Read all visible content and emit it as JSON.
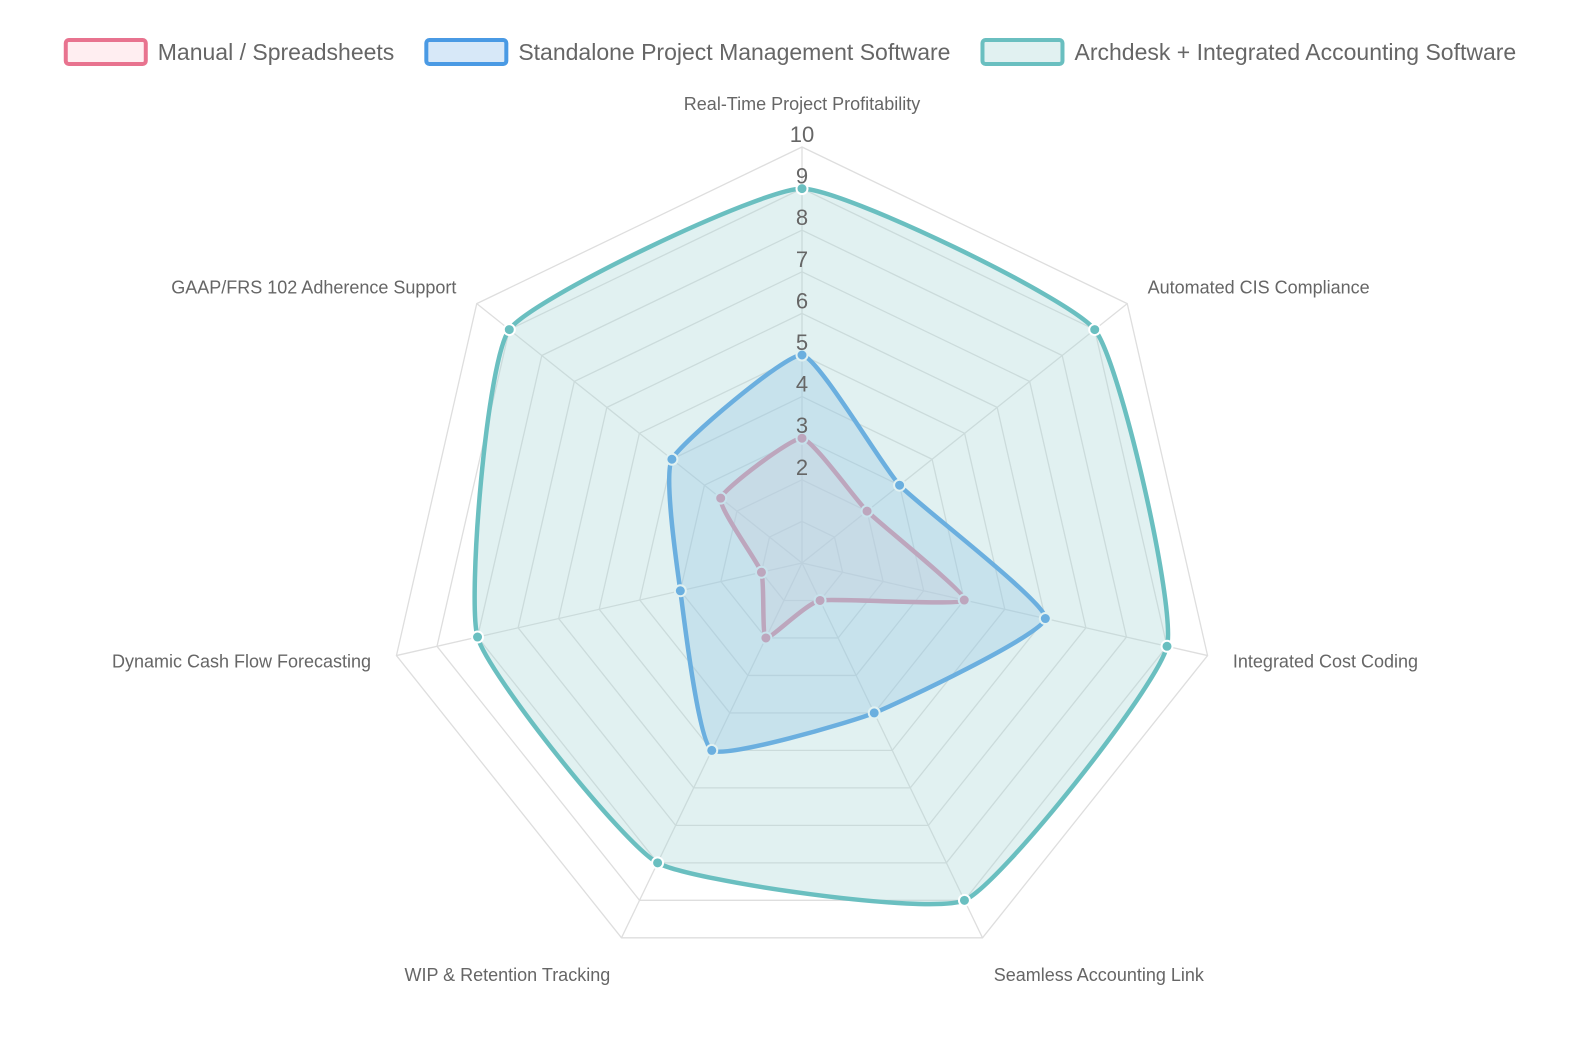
{
  "chart_data": {
    "type": "radar",
    "axes": [
      "Real-Time Project Profitability",
      "Automated CIS Compliance",
      "Integrated Cost Coding",
      "Seamless Accounting Link",
      "WIP & Retention Tracking",
      "Dynamic Cash Flow Forecasting",
      "GAAP/FRS 102 Adherence Support"
    ],
    "r_range": [
      0,
      10
    ],
    "ticks": [
      2,
      3,
      4,
      5,
      6,
      7,
      8,
      9,
      10
    ],
    "grid": true,
    "legend_position": "top",
    "series": [
      {
        "name": "Manual / Spreadsheets",
        "values": [
          3,
          2,
          4,
          1,
          2,
          1,
          2.5
        ],
        "color": "#e8738f",
        "fill": "rgba(255,205,215,0.35)"
      },
      {
        "name": "Standalone Project Management Software",
        "values": [
          5,
          3,
          6,
          4,
          5,
          3,
          4
        ],
        "color": "#4a9ae4",
        "fill": "rgba(140,190,235,0.35)"
      },
      {
        "name": "Archdesk + Integrated Accounting Software",
        "values": [
          9,
          9,
          9,
          9,
          8,
          8,
          9
        ],
        "color": "#6abfc0",
        "fill": "rgba(170,215,215,0.35)"
      }
    ]
  }
}
